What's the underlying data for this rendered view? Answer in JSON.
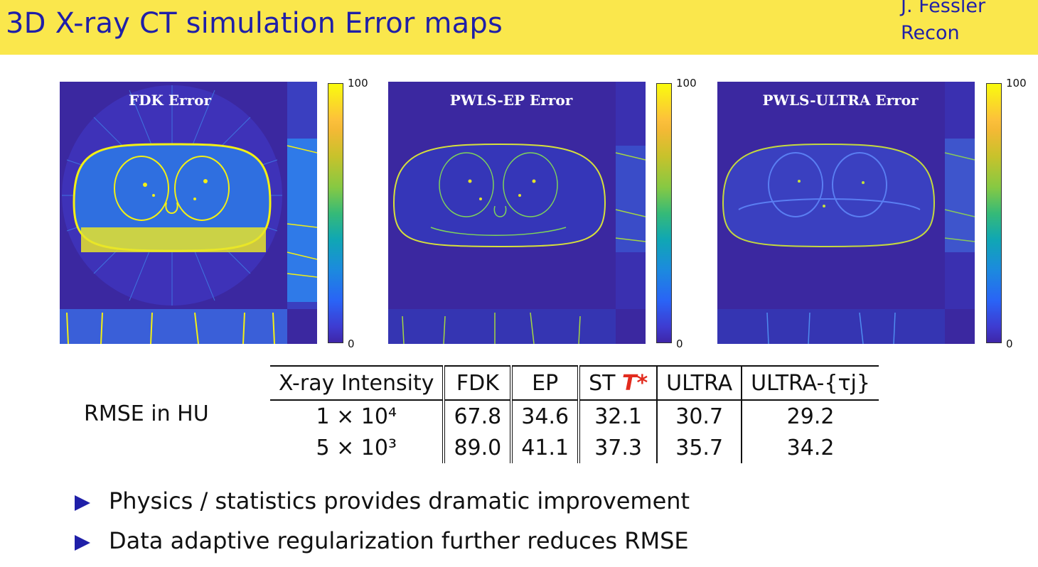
{
  "header": {
    "title": "3D X-ray CT simulation Error maps",
    "author": "J. Fessler",
    "section": "Recon"
  },
  "panels": [
    {
      "title": "FDK Error"
    },
    {
      "title": "PWLS-EP Error"
    },
    {
      "title": "PWLS-ULTRA Error"
    }
  ],
  "colorbar": {
    "max": "100",
    "min": "0"
  },
  "table": {
    "row_label": "RMSE in HU",
    "headers": [
      "X-ray Intensity",
      "FDK",
      "EP",
      "ST",
      "ULTRA",
      "ULTRA-{τj}"
    ],
    "st_symbol": "T*",
    "rows": [
      {
        "intensity": "1 × 10⁴",
        "fdk": "67.8",
        "ep": "34.6",
        "st": "32.1",
        "ultra": "30.7",
        "ultra_tau": "29.2"
      },
      {
        "intensity": "5 × 10³",
        "fdk": "89.0",
        "ep": "41.1",
        "st": "37.3",
        "ultra": "35.7",
        "ultra_tau": "34.2"
      }
    ]
  },
  "bullets": [
    "Physics / statistics provides dramatic improvement",
    "Data adaptive regularization further reduces RMSE"
  ],
  "colors": {
    "header_bg": "#fae74c",
    "title": "#1f1fa8",
    "image_bg": "#3b28a0",
    "highlight": "#e22b1e"
  }
}
